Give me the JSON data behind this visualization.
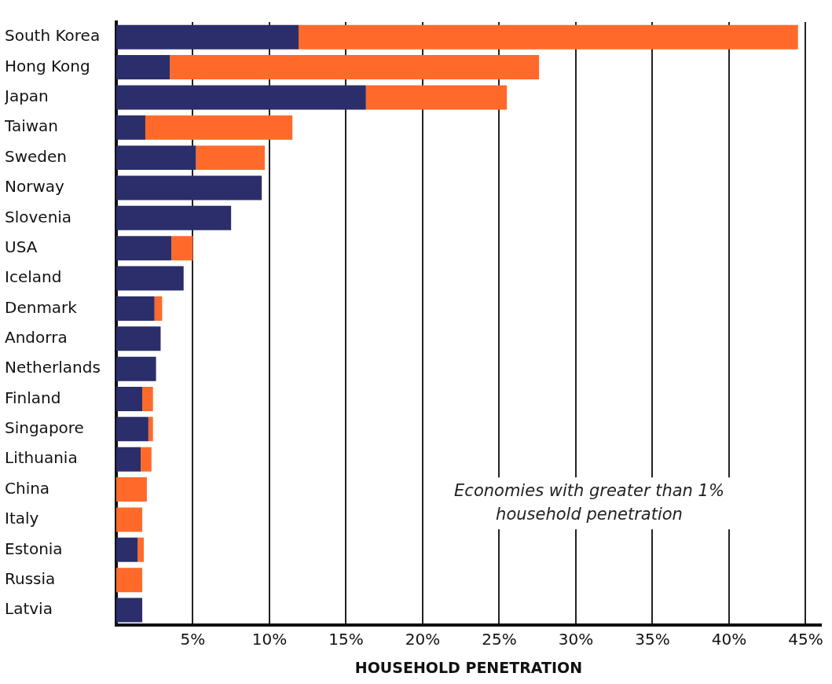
{
  "chart_data": {
    "type": "bar",
    "orientation": "horizontal",
    "stacked": true,
    "xlabel": "HOUSEHOLD PENETRATION",
    "categories": [
      "South Korea",
      "Hong Kong",
      "Japan",
      "Taiwan",
      "Sweden",
      "Norway",
      "Slovenia",
      "USA",
      "Iceland",
      "Denmark",
      "Andorra",
      "Netherlands",
      "Finland",
      "Singapore",
      "Lithuania",
      "China",
      "Italy",
      "Estonia",
      "Russia",
      "Latvia"
    ],
    "series": [
      {
        "color": "#2b2e6b",
        "values": [
          11.9,
          3.5,
          16.3,
          1.9,
          5.2,
          9.5,
          7.5,
          3.6,
          4.4,
          2.5,
          2.9,
          2.6,
          1.7,
          2.1,
          1.6,
          null,
          null,
          1.4,
          null,
          1.7
        ]
      },
      {
        "color": "#ff6a2b",
        "values": [
          32.6,
          24.1,
          9.2,
          9.6,
          4.5,
          null,
          null,
          1.4,
          null,
          0.5,
          null,
          null,
          0.7,
          0.3,
          0.7,
          2.0,
          1.7,
          0.4,
          1.7,
          null
        ]
      }
    ],
    "xlim": [
      0,
      46
    ],
    "xticks": [
      {
        "value": 5,
        "label": "5%"
      },
      {
        "value": 10,
        "label": "10%"
      },
      {
        "value": 15,
        "label": "15%"
      },
      {
        "value": 20,
        "label": "20%"
      },
      {
        "value": 25,
        "label": "25%"
      },
      {
        "value": 30,
        "label": "30%"
      },
      {
        "value": 35,
        "label": "35%"
      },
      {
        "value": 40,
        "label": "40%"
      },
      {
        "value": 45,
        "label": "45%"
      }
    ],
    "grid": "x",
    "annotations": [
      "Economies with greater than 1% household penetration"
    ]
  }
}
